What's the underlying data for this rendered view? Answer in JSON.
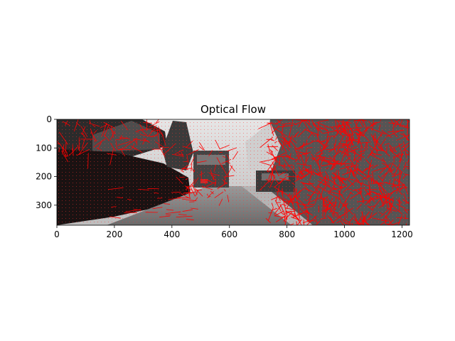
{
  "figure": {
    "title": "Optical Flow"
  },
  "image": {
    "description_colors": {
      "flow_arrows": "#ff0000",
      "frame": "#000000"
    },
    "x_range": [
      0,
      1226
    ],
    "y_range": [
      0,
      370
    ],
    "x_ticks": [
      0,
      200,
      400,
      600,
      800,
      1000,
      1200
    ],
    "y_ticks": [
      0,
      100,
      200,
      300
    ],
    "y_inverted": true
  },
  "chart_data": {
    "type": "image",
    "title": "Optical Flow",
    "x_ticks": [
      0,
      200,
      400,
      600,
      800,
      1000,
      1200
    ],
    "y_ticks": [
      0,
      100,
      200,
      300
    ],
    "xlim": [
      0,
      1226
    ],
    "ylim": [
      370,
      0
    ]
  }
}
